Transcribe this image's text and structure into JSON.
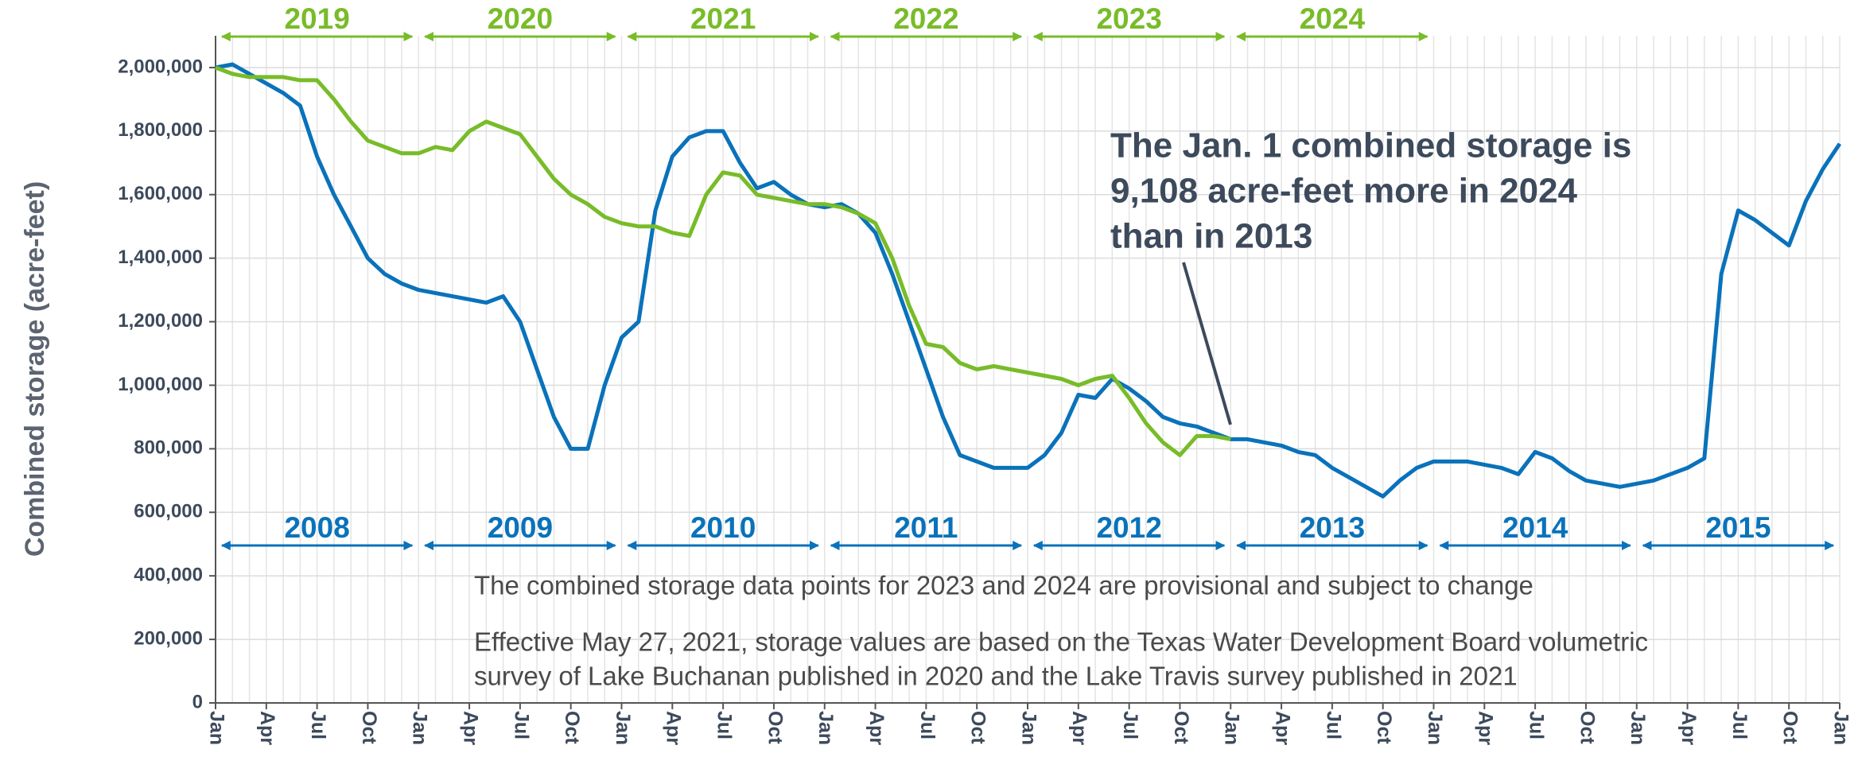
{
  "chart_data": {
    "type": "line",
    "ylabel": "Combined storage (acre-feet)",
    "categories": [
      "Jan",
      null,
      null,
      "Apr",
      null,
      null,
      "Jul",
      null,
      null,
      "Oct",
      null,
      null,
      "Jan",
      null,
      null,
      "Apr",
      null,
      null,
      "Jul",
      null,
      null,
      "Oct",
      null,
      null,
      "Jan",
      null,
      null,
      "Apr",
      null,
      null,
      "Jul",
      null,
      null,
      "Oct",
      null,
      null,
      "Jan",
      null,
      null,
      "Apr",
      null,
      null,
      "Jul",
      null,
      null,
      "Oct",
      null,
      null,
      "Jan",
      null,
      null,
      "Apr",
      null,
      null,
      "Jul",
      null,
      null,
      "Oct",
      null,
      null,
      "Jan",
      null,
      null,
      "Apr",
      null,
      null,
      "Jul",
      null,
      null,
      "Oct",
      null,
      null,
      "Jan",
      null,
      null,
      "Apr",
      null,
      null,
      "Jul",
      null,
      null,
      "Oct",
      null,
      null,
      "Jan",
      null,
      null,
      "Apr",
      null,
      null,
      "Jul",
      null,
      null,
      "Oct",
      null,
      null,
      "Jan"
    ],
    "series": [
      {
        "color": "#0a72ba",
        "values": [
          2000000,
          2010000,
          1980000,
          1950000,
          1920000,
          1880000,
          1720000,
          1600000,
          1500000,
          1400000,
          1350000,
          1320000,
          1300000,
          1290000,
          1280000,
          1270000,
          1260000,
          1280000,
          1200000,
          1050000,
          900000,
          800000,
          800000,
          1000000,
          1150000,
          1200000,
          1550000,
          1720000,
          1780000,
          1800000,
          1800000,
          1700000,
          1620000,
          1640000,
          1600000,
          1570000,
          1560000,
          1570000,
          1540000,
          1480000,
          1350000,
          1200000,
          1050000,
          900000,
          780000,
          760000,
          740000,
          740000,
          740000,
          780000,
          850000,
          970000,
          960000,
          1020000,
          990000,
          950000,
          900000,
          880000,
          870000,
          850000,
          830000,
          830000,
          820000,
          810000,
          790000,
          780000,
          740000,
          710000,
          680000,
          650000,
          700000,
          740000,
          760000,
          760000,
          760000,
          750000,
          740000,
          720000,
          790000,
          770000,
          730000,
          700000,
          690000,
          680000,
          690000,
          700000,
          720000,
          740000,
          770000,
          1350000,
          1550000,
          1520000,
          1480000,
          1440000,
          1580000,
          1680000,
          1760000
        ]
      },
      {
        "color": "#78bc29",
        "values": [
          2000000,
          1980000,
          1970000,
          1970000,
          1970000,
          1960000,
          1960000,
          1900000,
          1830000,
          1770000,
          1750000,
          1730000,
          1730000,
          1750000,
          1740000,
          1800000,
          1830000,
          1810000,
          1790000,
          1720000,
          1650000,
          1600000,
          1570000,
          1530000,
          1510000,
          1500000,
          1500000,
          1480000,
          1470000,
          1600000,
          1670000,
          1660000,
          1600000,
          1590000,
          1580000,
          1570000,
          1570000,
          1560000,
          1540000,
          1510000,
          1400000,
          1250000,
          1130000,
          1120000,
          1070000,
          1050000,
          1060000,
          1050000,
          1040000,
          1030000,
          1020000,
          1000000,
          1020000,
          1030000,
          960000,
          880000,
          820000,
          780000,
          840000,
          840000,
          830000,
          null,
          null,
          null,
          null,
          null,
          null,
          null,
          null,
          null,
          null,
          null,
          null,
          null,
          null,
          null,
          null,
          null,
          null,
          null,
          null,
          null,
          null,
          null,
          null,
          null,
          null,
          null,
          null,
          null,
          null,
          null,
          null,
          null,
          null,
          null,
          null
        ]
      }
    ],
    "ylim": [
      0,
      2100000
    ],
    "yticks": [
      {
        "value": 0,
        "label": "0"
      },
      {
        "value": 200000,
        "label": "200,000"
      },
      {
        "value": 400000,
        "label": "400,000"
      },
      {
        "value": 600000,
        "label": "600,000"
      },
      {
        "value": 800000,
        "label": "800,000"
      },
      {
        "value": 1000000,
        "label": "1,000,000"
      },
      {
        "value": 1200000,
        "label": "1,200,000"
      },
      {
        "value": 1400000,
        "label": "1,400,000"
      },
      {
        "value": 1600000,
        "label": "1,600,000"
      },
      {
        "value": 1800000,
        "label": "1,800,000"
      },
      {
        "value": 2000000,
        "label": "2,000,000"
      }
    ],
    "grid": true,
    "top_periods": {
      "color": "#78bc29",
      "labels": [
        "2019",
        "2020",
        "2021",
        "2022",
        "2023",
        "2024"
      ]
    },
    "bottom_periods": {
      "color": "#0a72ba",
      "labels": [
        "2008",
        "2009",
        "2010",
        "2011",
        "2012",
        "2013",
        "2014",
        "2015"
      ]
    },
    "annotation": [
      "The Jan. 1 combined storage is",
      "9,108 acre-feet more in 2024",
      "than in 2013"
    ],
    "notes": [
      "The combined storage data points for 2023 and 2024 are provisional and subject to change",
      "Effective May 27, 2021, storage values are based on the Texas Water Development Board volumetric",
      "survey of Lake Buchanan published in 2020 and the Lake Travis survey published in 2021"
    ]
  }
}
